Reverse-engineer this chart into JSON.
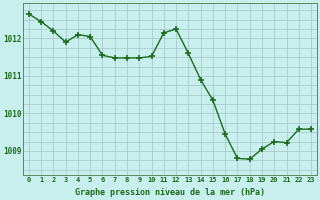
{
  "x": [
    0,
    1,
    2,
    3,
    4,
    5,
    6,
    7,
    8,
    9,
    10,
    11,
    12,
    13,
    14,
    15,
    16,
    17,
    18,
    19,
    20,
    21,
    22,
    23
  ],
  "y": [
    1012.65,
    1012.45,
    1012.2,
    1011.9,
    1012.1,
    1012.05,
    1011.55,
    1011.48,
    1011.48,
    1011.48,
    1011.52,
    1012.15,
    1012.25,
    1011.6,
    1010.9,
    1010.35,
    1009.45,
    1008.8,
    1008.78,
    1009.05,
    1009.25,
    1009.22,
    1009.58,
    1009.58
  ],
  "line_color": "#1a6b1a",
  "marker": "+",
  "marker_size": 4,
  "marker_lw": 1.2,
  "bg_color": "#c8eeee",
  "grid_color": "#a8cccc",
  "xlabel": "Graphe pression niveau de la mer (hPa)",
  "xlabel_color": "#1a6b1a",
  "tick_color": "#1a6b1a",
  "ytick_labels": [
    1009,
    1010,
    1011,
    1012
  ],
  "ylim": [
    1008.35,
    1012.95
  ],
  "xlim": [
    -0.5,
    23.5
  ],
  "spine_color": "#5a8a5a",
  "linewidth": 1.0,
  "xtick_fontsize": 5.0,
  "ytick_fontsize": 5.5,
  "xlabel_fontsize": 6.0
}
